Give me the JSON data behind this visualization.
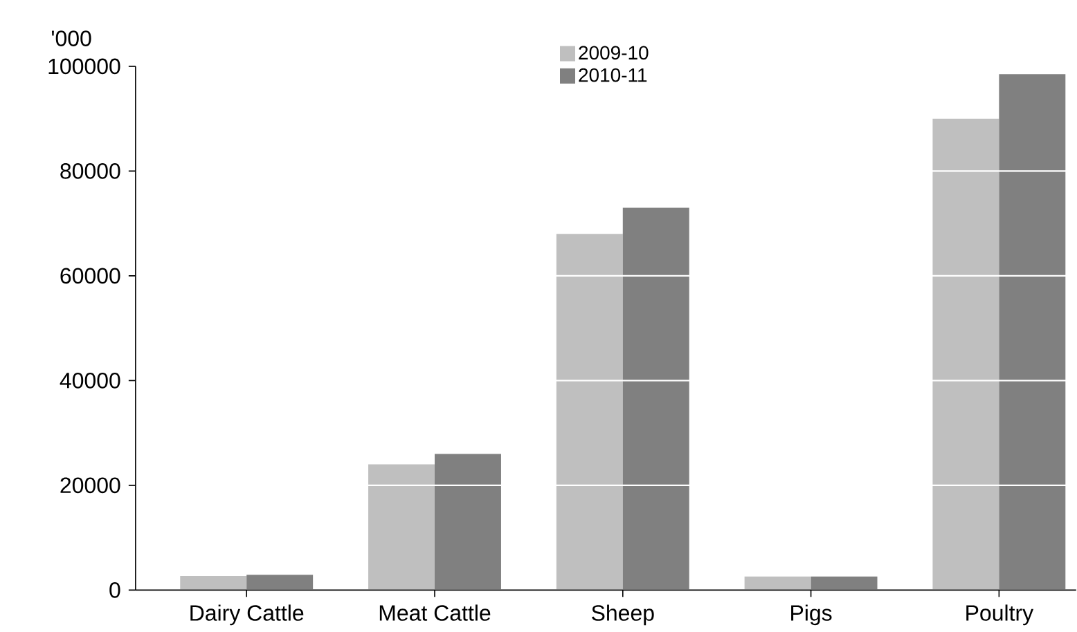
{
  "chart_data": {
    "type": "bar",
    "ylabel": "'000",
    "categories": [
      "Dairy Cattle",
      "Meat Cattle",
      "Sheep",
      "Pigs",
      "Poultry"
    ],
    "series": [
      {
        "name": "2009-10",
        "color": "#bfbfbf",
        "values": [
          2700,
          24000,
          68000,
          2600,
          90000
        ]
      },
      {
        "name": "2010-11",
        "color": "#808080",
        "values": [
          2900,
          26000,
          73000,
          2600,
          98500
        ]
      }
    ],
    "ylim": [
      0,
      100000
    ],
    "yticks": [
      0,
      20000,
      40000,
      60000,
      80000,
      100000
    ],
    "grid": "y",
    "legend": "top"
  }
}
